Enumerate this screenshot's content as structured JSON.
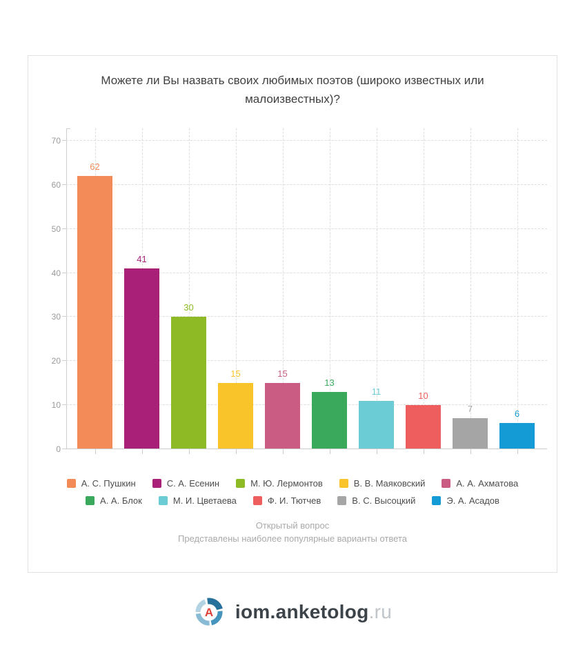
{
  "chart_data": {
    "type": "bar",
    "title": "Можете ли Вы назвать своих любимых поэтов (широко известных или малоизвестных)?",
    "categories": [
      "А. С. Пушкин",
      "С. А. Есенин",
      "М. Ю. Лермонтов",
      "В. В. Маяковский",
      "А. А. Ахматова",
      "А. А. Блок",
      "М. И. Цветаева",
      "Ф. И. Тютчев",
      "В. С. Высоцкий",
      "Э. А. Асадов"
    ],
    "values": [
      62,
      41,
      30,
      15,
      15,
      13,
      11,
      10,
      7,
      6
    ],
    "colors": [
      "#f28b58",
      "#a82078",
      "#8eba26",
      "#f9c32a",
      "#ca5c84",
      "#3aa95c",
      "#6bccd5",
      "#ef5e5e",
      "#a5a5a5",
      "#149bd6"
    ],
    "xlabel": "",
    "ylabel": "",
    "ylim": [
      0,
      70
    ],
    "yticks": [
      0,
      10,
      20,
      30,
      40,
      50,
      60,
      70
    ],
    "grid": true,
    "value_labels": true,
    "legend_position": "bottom",
    "legend_items_per_row": 5,
    "footnotes": [
      "Открытый вопрос",
      "Представлены наиболее популярные варианты ответа"
    ]
  },
  "footer": {
    "logo_text": "iom.anketolog",
    "logo_suffix": ".ru",
    "logo_letter": "A",
    "logo_icon": "anketolog-ring-logo"
  }
}
